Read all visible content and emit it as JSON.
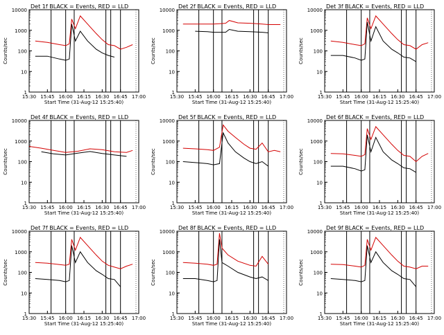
{
  "figure": {
    "x_title": "Start Time (31-Aug-12 15:25:40)",
    "y_title": "Counts/sec",
    "x_ticks": [
      "15:30",
      "15:45",
      "16:00",
      "16:15",
      "16:30",
      "16:45",
      "17:00"
    ],
    "y_ticks": [
      "1",
      "10",
      "100",
      "1000",
      "10000"
    ],
    "series_colors": {
      "events": "#000000",
      "lld": "#d40000"
    },
    "vertical_line_color": "#000000"
  },
  "chart_data": [
    {
      "type": "line",
      "title": "Det 1f BLACK = Events, RED = LLD",
      "xlabel": "Start Time (31-Aug-12 15:25:40)",
      "ylabel": "Counts/sec",
      "ylim": [
        1,
        10000
      ],
      "yscale": "log",
      "x": [
        "15:35",
        "15:45",
        "15:55",
        "16:00",
        "16:03",
        "16:05",
        "16:08",
        "16:12",
        "16:18",
        "16:25",
        "16:30",
        "16:35",
        "16:40",
        "16:45",
        "16:50",
        "16:55"
      ],
      "series": [
        {
          "name": "BLACK = Events",
          "values": [
            55,
            55,
            40,
            35,
            40,
            2000,
            300,
            900,
            300,
            120,
            80,
            60,
            50,
            null,
            null,
            null
          ]
        },
        {
          "name": "RED = LLD",
          "values": [
            300,
            260,
            200,
            180,
            220,
            3500,
            1200,
            5000,
            2000,
            700,
            350,
            200,
            180,
            120,
            150,
            200
          ]
        }
      ],
      "marks": [
        "15:48",
        "16:00",
        "16:07",
        "16:33",
        "16:37",
        "16:45"
      ]
    },
    {
      "type": "line",
      "title": "Det 2f BLACK = Events, RED = LLD",
      "xlabel": "Start Time (31-Aug-12 15:25:40)",
      "ylabel": "Counts/sec",
      "ylim": [
        1,
        10000
      ],
      "yscale": "log",
      "x": [
        "15:35",
        "15:45",
        "15:55",
        "16:00",
        "16:05",
        "16:10",
        "16:13",
        "16:20",
        "16:30",
        "16:40",
        "16:45",
        "16:55"
      ],
      "series": [
        {
          "name": "BLACK = Events",
          "values": [
            null,
            900,
            850,
            800,
            800,
            800,
            1100,
            900,
            850,
            800,
            750,
            null
          ]
        },
        {
          "name": "RED = LLD",
          "values": [
            2000,
            2000,
            2000,
            2000,
            2100,
            2200,
            3000,
            2300,
            2200,
            2000,
            1900,
            1900
          ]
        }
      ],
      "marks": [
        "15:48",
        "16:00",
        "16:07",
        "16:33",
        "16:37",
        "16:45"
      ]
    },
    {
      "type": "line",
      "title": "Det 3f BLACK = Events, RED = LLD",
      "xlabel": "Start Time (31-Aug-12 15:25:40)",
      "ylabel": "Counts/sec",
      "ylim": [
        1,
        10000
      ],
      "yscale": "log",
      "x": [
        "15:35",
        "15:45",
        "15:55",
        "16:00",
        "16:03",
        "16:05",
        "16:08",
        "16:12",
        "16:18",
        "16:25",
        "16:30",
        "16:35",
        "16:40",
        "16:45",
        "16:50",
        "16:55"
      ],
      "series": [
        {
          "name": "BLACK = Events",
          "values": [
            60,
            60,
            45,
            35,
            40,
            2500,
            300,
            1500,
            300,
            120,
            80,
            50,
            45,
            30,
            null,
            null
          ]
        },
        {
          "name": "RED = LLD",
          "values": [
            300,
            260,
            200,
            180,
            220,
            4000,
            1200,
            5000,
            2000,
            700,
            350,
            200,
            180,
            120,
            200,
            250
          ]
        }
      ],
      "marks": [
        "15:48",
        "16:00",
        "16:07",
        "16:33",
        "16:37",
        "16:45"
      ]
    },
    {
      "type": "line",
      "title": "Det 4f BLACK = Events, RED = LLD",
      "xlabel": "Start Time (31-Aug-12 15:25:40)",
      "ylabel": "Counts/sec",
      "ylim": [
        1,
        10000
      ],
      "yscale": "log",
      "x": [
        "15:30",
        "15:40",
        "15:50",
        "16:00",
        "16:10",
        "16:20",
        "16:30",
        "16:40",
        "16:50",
        "16:55"
      ],
      "series": [
        {
          "name": "BLACK = Events",
          "values": [
            null,
            300,
            240,
            210,
            260,
            310,
            250,
            210,
            180,
            null
          ]
        },
        {
          "name": "RED = LLD",
          "values": [
            550,
            450,
            350,
            280,
            320,
            420,
            380,
            300,
            280,
            350
          ]
        }
      ],
      "marks": [
        "15:48",
        "16:00",
        "16:07",
        "16:33",
        "16:37",
        "16:45"
      ]
    },
    {
      "type": "line",
      "title": "Det 5f BLACK = Events, RED = LLD",
      "xlabel": "Start Time (31-Aug-12 15:25:40)",
      "ylabel": "Counts/sec",
      "ylim": [
        1,
        10000
      ],
      "yscale": "log",
      "x": [
        "15:35",
        "15:45",
        "15:55",
        "16:00",
        "16:05",
        "16:08",
        "16:12",
        "16:18",
        "16:25",
        "16:30",
        "16:35",
        "16:40",
        "16:45",
        "16:50",
        "16:55"
      ],
      "series": [
        {
          "name": "BLACK = Events",
          "values": [
            100,
            90,
            80,
            70,
            80,
            2500,
            800,
            300,
            150,
            100,
            80,
            100,
            60,
            null,
            null
          ]
        },
        {
          "name": "RED = LLD",
          "values": [
            450,
            420,
            380,
            350,
            500,
            6000,
            3000,
            1500,
            700,
            450,
            400,
            800,
            300,
            350,
            300
          ]
        }
      ],
      "marks": [
        "15:48",
        "16:00",
        "16:07",
        "16:33",
        "16:37",
        "16:45"
      ]
    },
    {
      "type": "line",
      "title": "Det 6f BLACK = Events, RED = LLD",
      "xlabel": "Start Time (31-Aug-12 15:25:40)",
      "ylabel": "Counts/sec",
      "ylim": [
        1,
        10000
      ],
      "yscale": "log",
      "x": [
        "15:35",
        "15:45",
        "15:55",
        "16:00",
        "16:03",
        "16:05",
        "16:08",
        "16:12",
        "16:18",
        "16:25",
        "16:30",
        "16:35",
        "16:40",
        "16:45",
        "16:50",
        "16:55"
      ],
      "series": [
        {
          "name": "BLACK = Events",
          "values": [
            60,
            60,
            45,
            35,
            40,
            2000,
            300,
            1500,
            300,
            120,
            80,
            50,
            45,
            30,
            null,
            null
          ]
        },
        {
          "name": "RED = LLD",
          "values": [
            250,
            240,
            200,
            180,
            220,
            4000,
            1200,
            5000,
            2000,
            700,
            350,
            200,
            180,
            100,
            180,
            250
          ]
        }
      ],
      "marks": [
        "15:48",
        "16:00",
        "16:07",
        "16:33",
        "16:37",
        "16:45"
      ]
    },
    {
      "type": "line",
      "title": "Det 7f BLACK = Events, RED = LLD",
      "xlabel": "Start Time (31-Aug-12 15:25:40)",
      "ylabel": "Counts/sec",
      "ylim": [
        1,
        10000
      ],
      "yscale": "log",
      "x": [
        "15:35",
        "15:45",
        "15:55",
        "16:00",
        "16:03",
        "16:05",
        "16:08",
        "16:12",
        "16:18",
        "16:25",
        "16:30",
        "16:35",
        "16:40",
        "16:45",
        "16:50",
        "16:55"
      ],
      "series": [
        {
          "name": "BLACK = Events",
          "values": [
            50,
            45,
            40,
            35,
            40,
            2000,
            300,
            1000,
            300,
            120,
            80,
            50,
            45,
            20,
            null,
            null
          ]
        },
        {
          "name": "RED = LLD",
          "values": [
            300,
            280,
            240,
            220,
            250,
            4000,
            1200,
            5000,
            2000,
            700,
            350,
            220,
            180,
            150,
            200,
            250
          ]
        }
      ],
      "marks": [
        "15:48",
        "16:00",
        "16:07",
        "16:33",
        "16:37",
        "16:45"
      ]
    },
    {
      "type": "line",
      "title": "Det 8f BLACK = Events, RED = LLD",
      "xlabel": "Start Time (31-Aug-12 15:25:40)",
      "ylabel": "Counts/sec",
      "ylim": [
        1,
        10000
      ],
      "yscale": "log",
      "x": [
        "15:35",
        "15:45",
        "15:55",
        "16:00",
        "16:03",
        "16:05",
        "16:07",
        "16:12",
        "16:20",
        "16:30",
        "16:35",
        "16:40",
        "16:45",
        "16:50"
      ],
      "series": [
        {
          "name": "BLACK = Events",
          "values": [
            50,
            50,
            40,
            35,
            40,
            4000,
            300,
            200,
            100,
            60,
            50,
            60,
            40,
            null
          ]
        },
        {
          "name": "RED = LLD",
          "values": [
            300,
            280,
            250,
            220,
            250,
            8000,
            1500,
            700,
            350,
            220,
            200,
            600,
            250,
            null
          ]
        }
      ],
      "marks": [
        "15:48",
        "16:00",
        "16:07",
        "16:33",
        "16:37",
        "16:45"
      ]
    },
    {
      "type": "line",
      "title": "Det 9f BLACK = Events, RED = LLD",
      "xlabel": "Start Time (31-Aug-12 15:25:40)",
      "ylabel": "Counts/sec",
      "ylim": [
        1,
        10000
      ],
      "yscale": "log",
      "x": [
        "15:35",
        "15:45",
        "15:55",
        "16:00",
        "16:03",
        "16:05",
        "16:08",
        "16:12",
        "16:18",
        "16:25",
        "16:30",
        "16:35",
        "16:40",
        "16:45",
        "16:50",
        "16:55"
      ],
      "series": [
        {
          "name": "BLACK = Events",
          "values": [
            50,
            45,
            40,
            35,
            40,
            2000,
            300,
            1000,
            300,
            120,
            80,
            50,
            45,
            20,
            null,
            null
          ]
        },
        {
          "name": "RED = LLD",
          "values": [
            250,
            240,
            200,
            180,
            220,
            4000,
            1200,
            5000,
            2000,
            700,
            350,
            200,
            180,
            150,
            200,
            200
          ]
        }
      ],
      "marks": [
        "15:48",
        "16:00",
        "16:07",
        "16:33",
        "16:37",
        "16:45"
      ]
    }
  ]
}
